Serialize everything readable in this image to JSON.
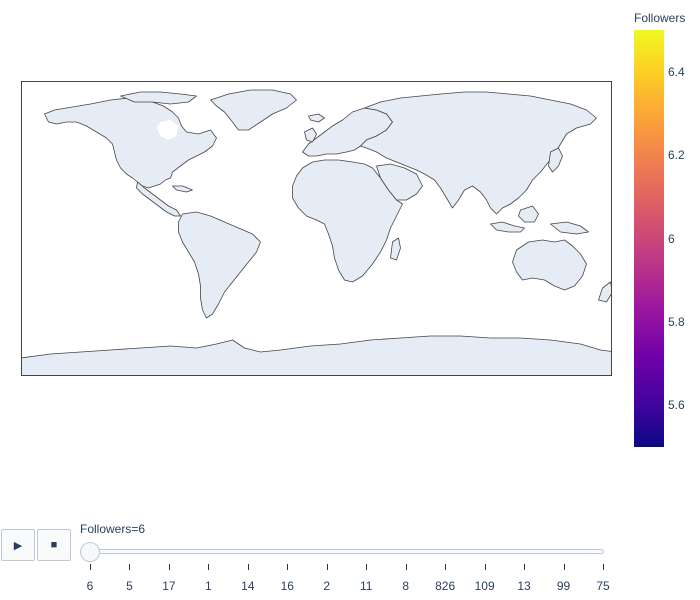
{
  "colorbar": {
    "title": "Followers",
    "ticks": [
      "6.4",
      "6.2",
      "6",
      "5.8",
      "5.6"
    ],
    "tick_values": [
      6.4,
      6.2,
      6.0,
      5.8,
      5.6
    ],
    "range": [
      5.5,
      6.5
    ],
    "colorscale": [
      "#0d0887",
      "#46039f",
      "#7201a8",
      "#9c179e",
      "#bd3786",
      "#d8576b",
      "#ed7953",
      "#fb9f3a",
      "#fdca26",
      "#f0f921"
    ]
  },
  "map": {
    "projection": "equirectangular",
    "land_color": "#e5ecf6",
    "coastline_color": "#444444"
  },
  "controls": {
    "play_icon": "play-icon",
    "stop_icon": "stop-icon",
    "play_glyph": "▶",
    "stop_glyph": "■"
  },
  "slider": {
    "prefix": "Followers=",
    "current_value": "6",
    "steps": [
      "6",
      "5",
      "17",
      "1",
      "14",
      "16",
      "2",
      "11",
      "8",
      "826",
      "109",
      "13",
      "99",
      "75"
    ]
  },
  "colors": {
    "text": "#2a3f5f",
    "slider_border": "#bec8d9",
    "button_bg": "#f8fafc"
  }
}
